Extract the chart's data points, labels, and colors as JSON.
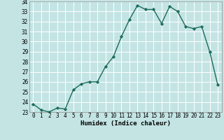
{
  "x": [
    0,
    1,
    2,
    3,
    4,
    5,
    6,
    7,
    8,
    9,
    10,
    11,
    12,
    13,
    14,
    15,
    16,
    17,
    18,
    19,
    20,
    21,
    22,
    23
  ],
  "y": [
    23.8,
    23.2,
    23.0,
    23.4,
    23.3,
    25.2,
    25.8,
    26.0,
    26.0,
    27.5,
    28.5,
    30.5,
    32.2,
    33.6,
    33.2,
    33.2,
    31.8,
    33.5,
    33.0,
    31.5,
    31.3,
    31.5,
    29.0,
    25.7
  ],
  "line_color": "#1a6b5a",
  "marker": "D",
  "marker_size": 2.2,
  "line_width": 1.0,
  "bg_color": "#c4e4e4",
  "grid_color": "#ffffff",
  "xlabel": "Humidex (Indice chaleur)",
  "ylim": [
    23,
    34
  ],
  "xlim": [
    -0.5,
    23.5
  ],
  "yticks": [
    23,
    24,
    25,
    26,
    27,
    28,
    29,
    30,
    31,
    32,
    33,
    34
  ],
  "xticks": [
    0,
    1,
    2,
    3,
    4,
    5,
    6,
    7,
    8,
    9,
    10,
    11,
    12,
    13,
    14,
    15,
    16,
    17,
    18,
    19,
    20,
    21,
    22,
    23
  ],
  "tick_fontsize": 5.5,
  "xlabel_fontsize": 6.5,
  "spine_color": "#888888"
}
